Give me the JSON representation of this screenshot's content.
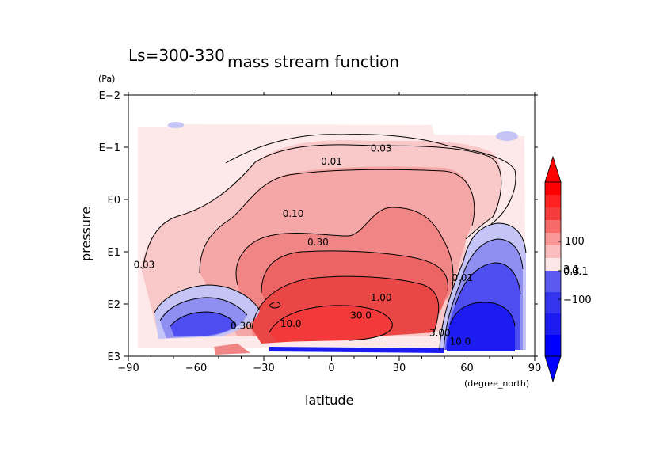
{
  "chart_data": {
    "type": "contour",
    "panel_label": "Ls=300-330",
    "title": "mass stream function",
    "xlabel": "latitude",
    "xunit": "(degree_north)",
    "ylabel": "pressure",
    "yunit": "(Pa)",
    "xlim": [
      -90,
      90
    ],
    "ylim_log10_pa": [
      -2,
      3
    ],
    "x_ticks": [
      "−90",
      "−60",
      "−30",
      "0",
      "30",
      "60",
      "90"
    ],
    "x_tick_values": [
      -90,
      -60,
      -30,
      0,
      30,
      60,
      90
    ],
    "y_ticks": [
      "E−2",
      "E−1",
      "E0",
      "E1",
      "E2",
      "E3"
    ],
    "y_tick_values": [
      -2,
      -1,
      0,
      1,
      2,
      3
    ],
    "contour_labels": [
      {
        "text": "0.01",
        "lat": 0,
        "log10p": -0.73
      },
      {
        "text": "0.03",
        "lat": 22,
        "log10p": -0.98
      },
      {
        "text": "0.10",
        "lat": -17,
        "log10p": 0.27
      },
      {
        "text": "0.30",
        "lat": -6,
        "log10p": 0.82
      },
      {
        "text": "1.00",
        "lat": 22,
        "log10p": 1.88
      },
      {
        "text": "10.0",
        "lat": -18,
        "log10p": 2.38
      },
      {
        "text": "30.0",
        "lat": 13,
        "log10p": 2.22
      },
      {
        "text": "0.03",
        "lat": -83,
        "log10p": 1.25
      },
      {
        "text": "0.30",
        "lat": -40,
        "log10p": 2.42
      },
      {
        "text": "3.00",
        "lat": 48,
        "log10p": 2.55
      },
      {
        "text": "10.0",
        "lat": 57,
        "log10p": 2.72
      },
      {
        "text": "0.01",
        "lat": 58,
        "log10p": 1.5
      }
    ],
    "colorbar": {
      "ticks": [
        "100",
        "0.1",
        "−100"
      ],
      "overlap_labels": [
        "3.1",
        "0.3"
      ],
      "colors_high": [
        "#ff0000",
        "#ff2222",
        "#f43c3c",
        "#f76a6a",
        "#f99696",
        "#fbbdbd",
        "#fde6e6"
      ],
      "colors_low": [
        "#5a5af0",
        "#3535ef",
        "#1c1cf0",
        "#0000ff"
      ]
    },
    "fill_colors": {
      "lightest_pink": "#fde9e9",
      "light_pink": "#f9c9c9",
      "pink": "#f5a7a7",
      "salmon": "#f08585",
      "red_light": "#ed6464",
      "red": "#ea4646",
      "red_core": "#f23a3a",
      "blue_light": "#c4c4f6",
      "blue_mid": "#8f8ff2",
      "blue": "#4d4df0",
      "blue_deep": "#1c1cf2"
    }
  }
}
